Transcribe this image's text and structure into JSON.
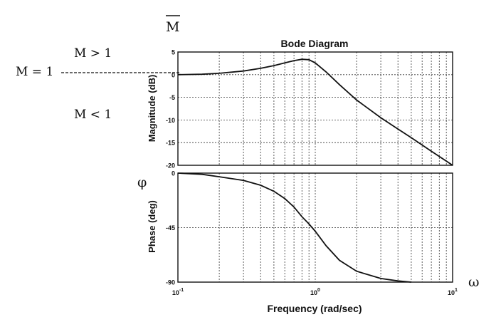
{
  "annotations": {
    "m_bar": "M",
    "m_equal_1": "M = 1",
    "m_greater_1": "M > 1",
    "m_less_1": "M < 1",
    "phi": "φ",
    "omega": "ω"
  },
  "chart_data": [
    {
      "type": "line",
      "title": "Bode Diagram",
      "ylabel": "Magnitude (dB)",
      "xscale": "log",
      "xlim": [
        0.1,
        10
      ],
      "ylim": [
        -20,
        5
      ],
      "yticks": [
        "5",
        "0",
        "-5",
        "-10",
        "-15",
        "-20"
      ],
      "ytick_values": [
        5,
        0,
        -5,
        -10,
        -15,
        -20
      ],
      "grid": true,
      "series": [
        {
          "x": [
            0.1,
            0.15,
            0.2,
            0.3,
            0.4,
            0.5,
            0.6,
            0.7,
            0.8,
            0.9,
            1.0,
            1.2,
            1.5,
            2.0,
            3.0,
            4.0,
            5.0,
            7.0,
            10.0
          ],
          "y": [
            0.0,
            0.1,
            0.3,
            0.8,
            1.4,
            2.0,
            2.6,
            3.1,
            3.4,
            3.3,
            2.6,
            0.6,
            -2.2,
            -5.6,
            -9.5,
            -12.0,
            -13.9,
            -16.9,
            -20.0
          ]
        }
      ]
    },
    {
      "type": "line",
      "xlabel": "Frequency (rad/sec)",
      "ylabel": "Phase (deg)",
      "xscale": "log",
      "xlim": [
        0.1,
        10
      ],
      "ylim": [
        -90,
        0
      ],
      "yticks": [
        "0",
        "-45",
        "-90"
      ],
      "ytick_values": [
        0,
        -45,
        -90
      ],
      "xticks": [
        {
          "value": 0.1,
          "base": "10",
          "exp": "-1"
        },
        {
          "value": 1,
          "base": "10",
          "exp": "0"
        },
        {
          "value": 10,
          "base": "10",
          "exp": "1"
        }
      ],
      "grid": true,
      "series": [
        {
          "x": [
            0.1,
            0.15,
            0.2,
            0.3,
            0.4,
            0.5,
            0.6,
            0.7,
            0.8,
            0.9,
            1.0,
            1.2,
            1.5,
            2.0,
            3.0,
            4.0,
            5.0
          ],
          "y": [
            0,
            -1,
            -3,
            -6,
            -10,
            -15,
            -21,
            -28,
            -36,
            -42,
            -48,
            -60,
            -72,
            -81,
            -87,
            -89,
            -90
          ]
        }
      ]
    }
  ]
}
